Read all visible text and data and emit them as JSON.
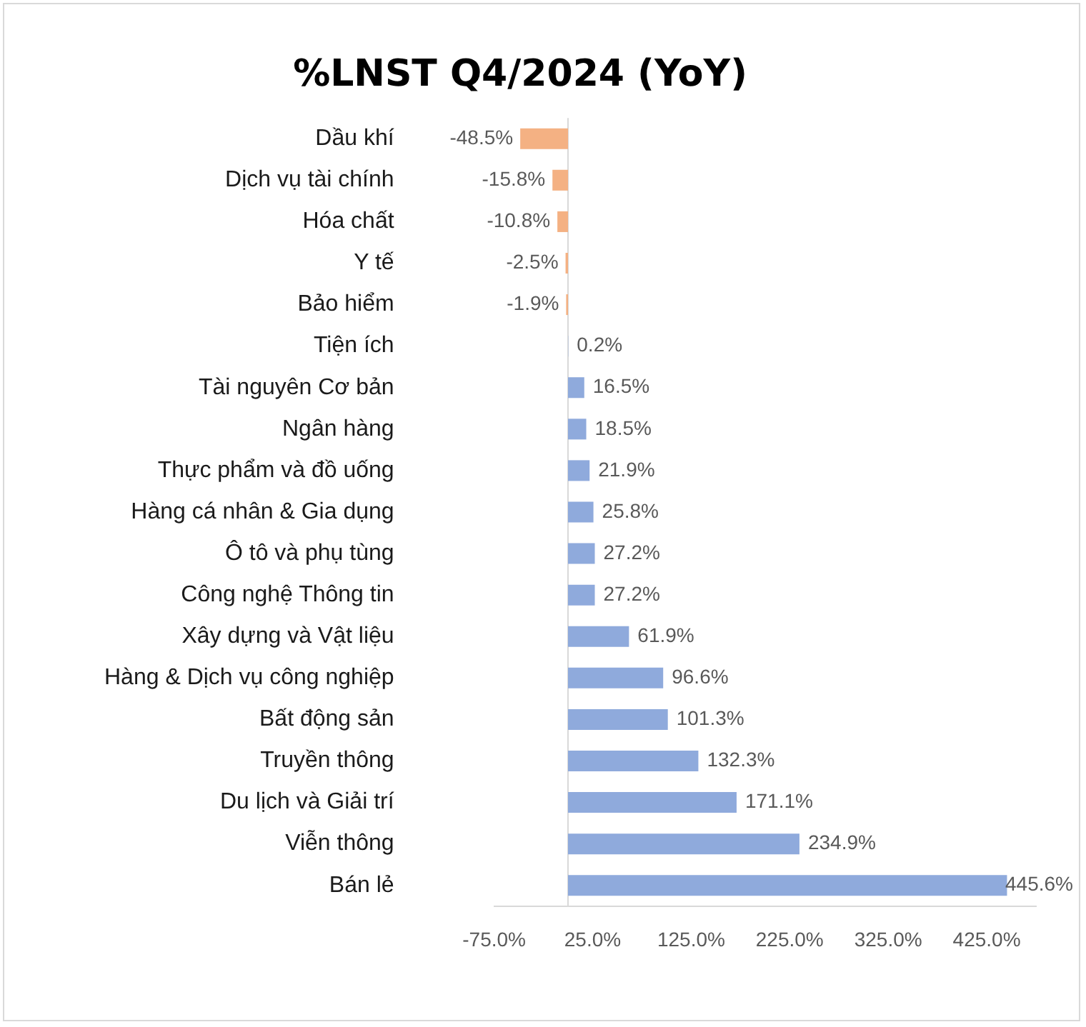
{
  "chart_data": {
    "type": "bar",
    "orientation": "horizontal",
    "title": "%LNST Q4/2024 (YoY)",
    "categories": [
      "Dầu khí",
      "Dịch vụ tài chính",
      "Hóa chất",
      "Y tế",
      "Bảo hiểm",
      "Tiện ích",
      "Tài nguyên Cơ bản",
      "Ngân hàng",
      "Thực phẩm và đồ uống",
      "Hàng cá nhân & Gia dụng",
      "Ô tô và phụ tùng",
      "Công nghệ Thông tin",
      "Xây dựng và Vật liệu",
      "Hàng & Dịch vụ công nghiệp",
      "Bất động sản",
      "Truyền thông",
      "Du lịch và Giải trí",
      "Viễn thông",
      "Bán lẻ"
    ],
    "values": [
      -48.5,
      -15.8,
      -10.8,
      -2.5,
      -1.9,
      0.2,
      16.5,
      18.5,
      21.9,
      25.8,
      27.2,
      27.2,
      61.9,
      96.6,
      101.3,
      132.3,
      171.1,
      234.9,
      445.6
    ],
    "colors": [
      "#f4b183",
      "#f4b183",
      "#f4b183",
      "#f4b183",
      "#f4b183",
      "#8faadc",
      "#8faadc",
      "#8faadc",
      "#8faadc",
      "#8faadc",
      "#8faadc",
      "#8faadc",
      "#8faadc",
      "#8faadc",
      "#8faadc",
      "#8faadc",
      "#8faadc",
      "#8faadc",
      "#8faadc"
    ],
    "value_labels": [
      "-48.5%",
      "-15.8%",
      "-10.8%",
      "-2.5%",
      "-1.9%",
      "0.2%",
      "16.5%",
      "18.5%",
      "21.9%",
      "25.8%",
      "27.2%",
      "27.2%",
      "61.9%",
      "96.6%",
      "101.3%",
      "132.3%",
      "171.1%",
      "234.9%",
      "445.6%"
    ],
    "xlim": [
      -75,
      475
    ],
    "xticks": [
      {
        "value": -75,
        "label": "-75.0%"
      },
      {
        "value": 25,
        "label": "25.0%"
      },
      {
        "value": 125,
        "label": "125.0%"
      },
      {
        "value": 225,
        "label": "225.0%"
      },
      {
        "value": 325,
        "label": "325.0%"
      },
      {
        "value": 425,
        "label": "425.0%"
      }
    ],
    "grid": false,
    "legend": false
  }
}
